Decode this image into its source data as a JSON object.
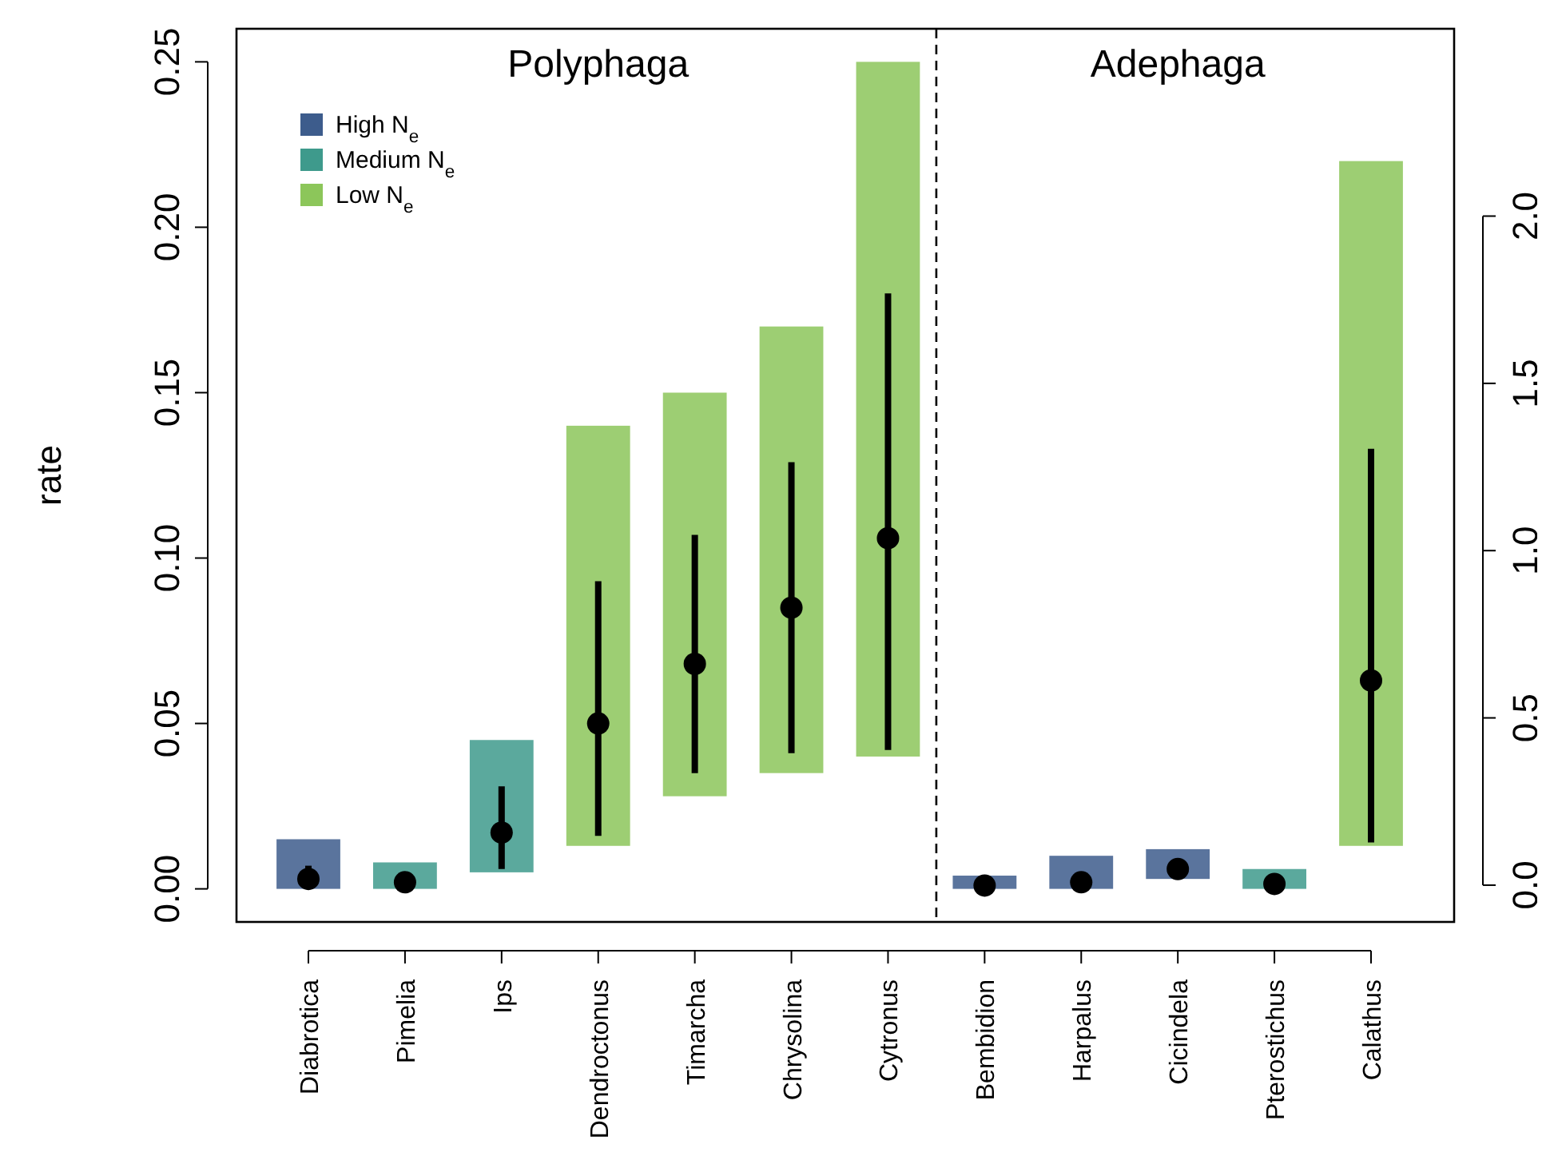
{
  "chart_data": {
    "type": "bar",
    "ylabel": "rate",
    "categories": [
      "Diabrotica",
      "Pimelia",
      "Ips",
      "Dendroctonus",
      "Timarcha",
      "Chrysolina",
      "Cytronus",
      "Bembidion",
      "Harpalus",
      "Cicindela",
      "Pterostichus",
      "Calathus"
    ],
    "series": [
      {
        "name": "High N$_{e}$",
        "color": "#3d5c8c",
        "base": [
          0,
          null,
          null,
          null,
          null,
          null,
          null,
          0,
          0,
          0.003,
          null,
          null
        ],
        "values": [
          0.015,
          null,
          null,
          null,
          null,
          null,
          null,
          0.004,
          0.01,
          0.009,
          null,
          null
        ]
      },
      {
        "name": "Medium N$_{e}$",
        "color": "#3e9a8c",
        "base": [
          null,
          0,
          0.005,
          null,
          null,
          null,
          null,
          null,
          null,
          null,
          0,
          null
        ],
        "values": [
          null,
          0.008,
          0.04,
          null,
          null,
          null,
          null,
          null,
          null,
          null,
          0.006,
          null
        ]
      },
      {
        "name": "Low N$_{e}$",
        "color": "#8cc65a",
        "base": [
          null,
          null,
          null,
          0.013,
          0.028,
          0.035,
          0.04,
          null,
          null,
          null,
          null,
          0.013
        ],
        "values": [
          null,
          null,
          null,
          0.127,
          0.122,
          0.135,
          0.21,
          null,
          null,
          null,
          null,
          0.207
        ]
      },
      {
        "type": "scatter",
        "color": "#000000",
        "marker": "circle",
        "x": [
          "Diabrotica",
          "Pimelia",
          "Ips",
          "Dendroctonus",
          "Timarcha",
          "Chrysolina",
          "Cytronus",
          "Bembidion",
          "Harpalus",
          "Cicindela",
          "Pterostichus",
          "Calathus"
        ],
        "values": [
          0.003,
          0.002,
          0.017,
          0.05,
          0.068,
          0.085,
          0.106,
          0.001,
          0.002,
          0.006,
          0.0015,
          0.063
        ],
        "errors": [
          [
            0.0005,
            0.007
          ],
          [
            0.0005,
            0.004
          ],
          [
            0.006,
            0.031
          ],
          [
            0.016,
            0.093
          ],
          [
            0.035,
            0.107
          ],
          [
            0.041,
            0.129
          ],
          [
            0.042,
            0.18
          ],
          [
            0,
            0.003
          ],
          [
            0.0005,
            0.005
          ],
          [
            0.003,
            0.009
          ],
          null,
          [
            0.014,
            0.133
          ]
        ]
      }
    ],
    "ylim": [
      -0.01,
      0.26
    ],
    "yticks": [
      {
        "value": 0,
        "label": "0.00"
      },
      0.05,
      {
        "value": 0.1,
        "label": "0.10"
      },
      0.15,
      {
        "value": 0.2,
        "label": "0.20"
      },
      0.25
    ],
    "y2lim": [
      -0.11,
      2.56
    ],
    "y2ticks": [
      {
        "value": 0,
        "label": "0.0"
      },
      0.5,
      {
        "value": 1,
        "label": "1.0"
      },
      1.5,
      {
        "value": 2,
        "label": "2.0"
      }
    ],
    "annotations": [
      "Polyphaga",
      "Adephaga"
    ],
    "legend": "top left",
    "grid": false
  }
}
